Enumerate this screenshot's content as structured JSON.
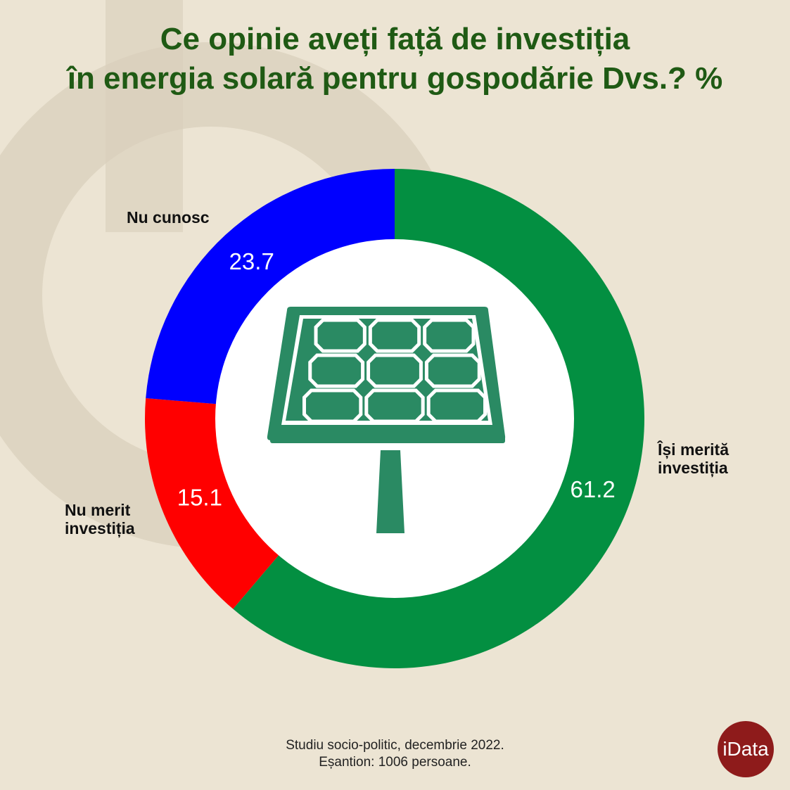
{
  "title": {
    "line1": "Ce opinie aveți față de investiția",
    "line2": "în energia solară pentru gospodărie Dvs.? %"
  },
  "chart_data": {
    "type": "pie",
    "variant": "donut",
    "start_angle_deg": 0,
    "direction": "clockwise",
    "slices": [
      {
        "name": "Își merită investiția",
        "value": 61.2,
        "label": "61.2",
        "color": "#038f41"
      },
      {
        "name": "Nu merit investiția",
        "value": 15.1,
        "label": "15.1",
        "color": "#ff0000"
      },
      {
        "name": "Nu cunosc",
        "value": 23.7,
        "label": "23.7",
        "color": "#0000ff"
      }
    ],
    "center_icon": "solar-panel-icon"
  },
  "labels": {
    "isi_merita": {
      "line1": "Își merită",
      "line2": "investiția"
    },
    "nu_merit": {
      "line1": "Nu merit",
      "line2": "investiția"
    },
    "nu_cunosc": {
      "line1": "Nu cunosc"
    }
  },
  "footer": {
    "line1": "Studiu socio-politic, decembrie 2022.",
    "line2": "Eșantion: 1006 persoane."
  },
  "logo": {
    "text": "iData",
    "color": "#8e1b1b"
  },
  "colors": {
    "background": "#ece4d3",
    "title": "#1f5a14",
    "icon": "#2a8a63"
  }
}
